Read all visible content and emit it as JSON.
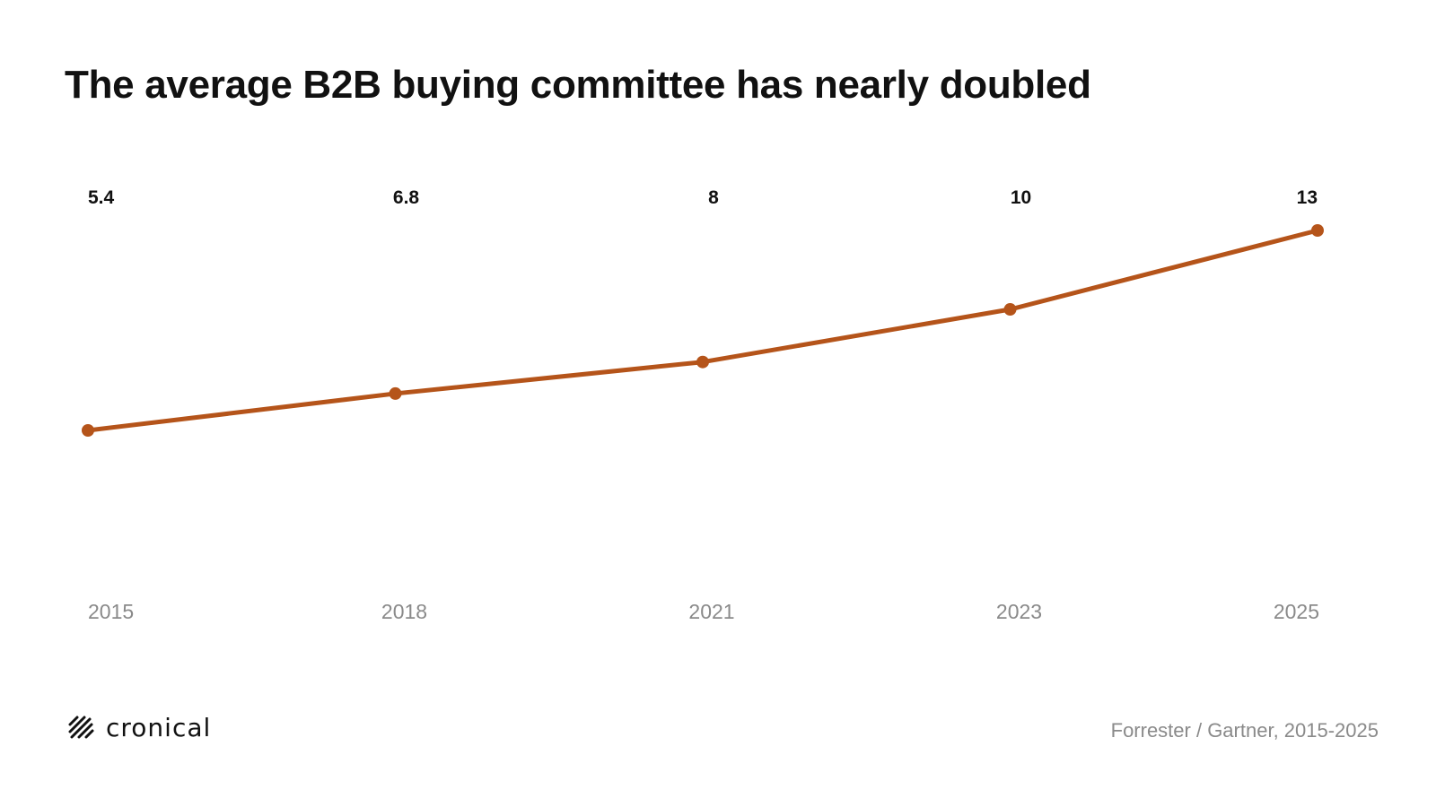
{
  "title": "The average B2B buying committee has nearly doubled",
  "brand": {
    "name": "cronical",
    "icon": "hatched-mark-icon"
  },
  "source": "Forrester / Gartner, 2015-2025",
  "colors": {
    "line": "#b5541a",
    "title": "#111111",
    "muted": "#8a8a8a"
  },
  "chart_data": {
    "type": "line",
    "title": "The average B2B buying committee has nearly doubled",
    "categories": [
      "2015",
      "2018",
      "2021",
      "2023",
      "2025"
    ],
    "values": [
      5.4,
      6.8,
      8,
      10,
      13
    ],
    "value_labels": [
      "5.4",
      "6.8",
      "8",
      "10",
      "13"
    ],
    "xlabel": "",
    "ylabel": "",
    "grid": false,
    "legend": "none",
    "markers": true
  }
}
